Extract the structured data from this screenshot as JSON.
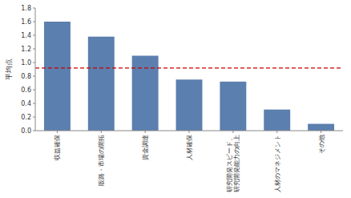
{
  "chart_data": {
    "type": "bar",
    "categories": [
      "収益確保",
      "販路・市場の開拓",
      "資金調達",
      "人材確保",
      "研究開発スピード、\n研究開発能力の向上",
      "人材のマネジメント",
      "その他"
    ],
    "values": [
      1.6,
      1.38,
      1.1,
      0.75,
      0.72,
      0.31,
      0.1
    ],
    "color": "#5b7fae",
    "ylabel": "平均点",
    "ylim": [
      0.0,
      1.8
    ],
    "yticks": [
      {
        "value": 0.0,
        "label": "0.0"
      },
      0.2,
      0.4,
      0.6,
      0.8,
      {
        "value": 1.0,
        "label": "1.0"
      },
      1.2,
      1.4,
      1.6,
      1.8
    ],
    "reference_lines": [
      {
        "value": 0.92,
        "color": "#cc0000",
        "line_style": "dashed"
      }
    ],
    "grid": false
  }
}
